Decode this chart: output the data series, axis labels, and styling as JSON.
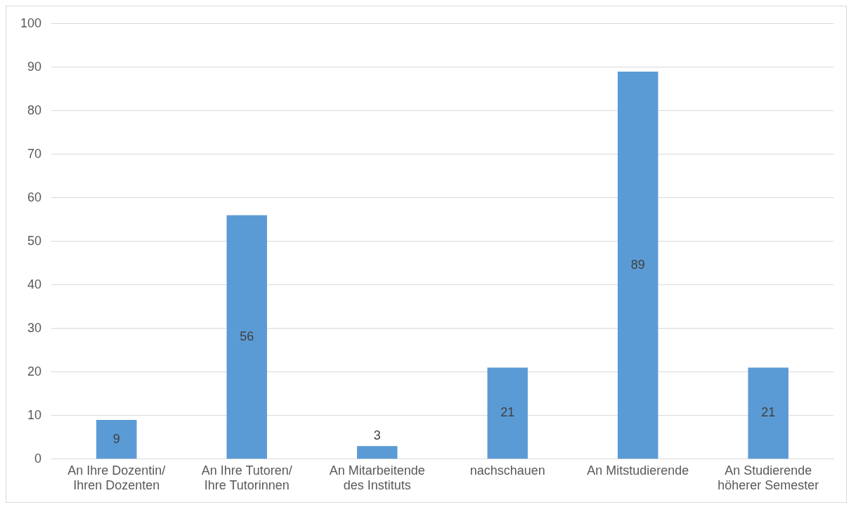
{
  "chart_data": {
    "type": "bar",
    "categories": [
      "An Ihre Dozentin/\nIhren Dozenten",
      "An Ihre Tutoren/\nIhre Tutorinnen",
      "An Mitarbeitende\ndes Instituts",
      "nachschauen",
      "An Mitstudierende",
      "An Studierende\nhöherer Semester"
    ],
    "values": [
      9,
      56,
      3,
      21,
      89,
      21
    ],
    "color": "#5b9bd5",
    "ylim": [
      0,
      100
    ],
    "yticks": [
      0,
      10,
      20,
      30,
      40,
      50,
      60,
      70,
      80,
      90,
      100
    ],
    "grid": "y",
    "data_labels": true,
    "legend": false
  }
}
